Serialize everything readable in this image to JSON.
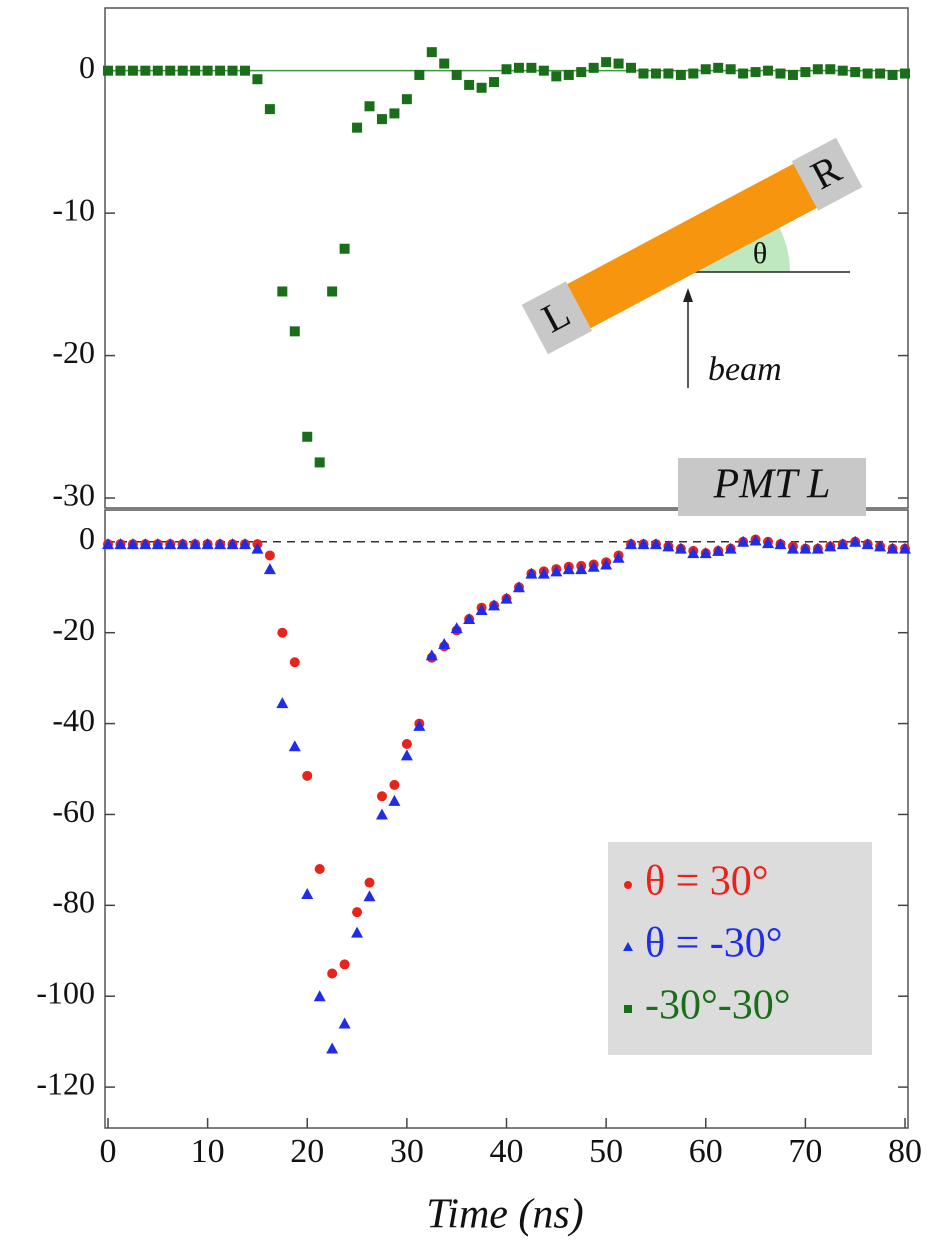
{
  "chart_data": [
    {
      "type": "scatter",
      "title": "PMT L",
      "x": [
        0,
        1.25,
        2.5,
        3.75,
        5,
        6.25,
        7.5,
        8.75,
        10,
        11.25,
        12.5,
        13.75,
        15,
        16.25,
        17.5,
        18.75,
        20,
        21.25,
        22.5,
        23.75,
        25,
        26.25,
        27.5,
        28.75,
        30,
        31.25,
        32.5,
        33.75,
        35,
        36.25,
        37.5,
        38.75,
        40,
        41.25,
        42.5,
        43.75,
        45,
        46.25,
        47.5,
        48.75,
        50,
        51.25,
        52.5,
        53.75,
        55,
        56.25,
        57.5,
        58.75,
        60,
        61.25,
        62.5,
        63.75,
        65,
        66.25,
        67.5,
        68.75,
        70,
        71.25,
        72.5,
        73.75,
        75,
        76.25,
        77.5,
        78.75,
        80
      ],
      "series": [
        {
          "name": "-30°-30°",
          "color": "#1a6e1a",
          "marker": "square",
          "values": [
            0,
            0,
            0,
            0,
            0,
            0,
            0,
            0,
            0,
            0,
            0,
            0,
            -0.6,
            -2.7,
            -15.5,
            -18.3,
            -25.7,
            -27.5,
            -15.5,
            -12.5,
            -4,
            -2.5,
            -3.4,
            -3,
            -2,
            -0.3,
            1.3,
            0.5,
            -0.3,
            -1,
            -1.2,
            -0.8,
            0.1,
            0.2,
            0.2,
            0,
            -0.4,
            -0.3,
            -0.1,
            0.2,
            0.6,
            0.5,
            0.2,
            -0.2,
            -0.2,
            -0.2,
            -0.3,
            -0.2,
            0.1,
            0.2,
            0.1,
            -0.2,
            -0.1,
            0,
            -0.2,
            -0.3,
            -0.1,
            0.1,
            0.1,
            0,
            -0.1,
            -0.2,
            -0.2,
            -0.3,
            -0.2
          ]
        }
      ],
      "xlim": [
        -0.3,
        80.3
      ],
      "ylim": [
        -30.7,
        4.4
      ],
      "yticks": [
        0,
        -10,
        -20,
        -30
      ],
      "hline": 0,
      "inset": {
        "left": "L",
        "right": "R",
        "angle": "θ",
        "beam": "beam"
      }
    },
    {
      "type": "scatter",
      "x_label": "Time (ns)",
      "x": [
        0,
        1.25,
        2.5,
        3.75,
        5,
        6.25,
        7.5,
        8.75,
        10,
        11.25,
        12.5,
        13.75,
        15,
        16.25,
        17.5,
        18.75,
        20,
        21.25,
        22.5,
        23.75,
        25,
        26.25,
        27.5,
        28.75,
        30,
        31.25,
        32.5,
        33.75,
        35,
        36.25,
        37.5,
        38.75,
        40,
        41.25,
        42.5,
        43.75,
        45,
        46.25,
        47.5,
        48.75,
        50,
        51.25,
        52.5,
        53.75,
        55,
        56.25,
        57.5,
        58.75,
        60,
        61.25,
        62.5,
        63.75,
        65,
        66.25,
        67.5,
        68.75,
        70,
        71.25,
        72.5,
        73.75,
        75,
        76.25,
        77.5,
        78.75,
        80
      ],
      "series": [
        {
          "name": "θ = 30°",
          "color": "#e8231c",
          "marker": "circle",
          "values": [
            -0.5,
            -0.5,
            -0.5,
            -0.5,
            -0.5,
            -0.5,
            -0.5,
            -0.5,
            -0.5,
            -0.5,
            -0.5,
            -0.5,
            -0.5,
            -3,
            -20,
            -26.5,
            -51.5,
            -72,
            -95,
            -93,
            -81.5,
            -75,
            -56,
            -53.5,
            -44.5,
            -40,
            -25.5,
            -23,
            -19.5,
            -17,
            -14.5,
            -14,
            -12.5,
            -10,
            -7,
            -6.5,
            -6,
            -5.5,
            -5.3,
            -5,
            -4.5,
            -3,
            -0.5,
            -0.5,
            -0.5,
            -1,
            -1.5,
            -2,
            -2.5,
            -2,
            -1.5,
            0,
            0.5,
            0,
            -0.5,
            -1,
            -1.5,
            -1.5,
            -1,
            -0.5,
            0,
            -0.5,
            -1,
            -1.5,
            -1.5
          ]
        },
        {
          "name": "θ = -30°",
          "color": "#1f2de8",
          "marker": "triangle",
          "values": [
            -0.5,
            -0.5,
            -0.5,
            -0.5,
            -0.5,
            -0.5,
            -0.5,
            -0.5,
            -0.5,
            -0.5,
            -0.5,
            -0.5,
            -1.5,
            -6,
            -35.5,
            -45,
            -77.5,
            -100,
            -111.5,
            -106,
            -86,
            -78,
            -60,
            -57,
            -47,
            -40.5,
            -25,
            -22.5,
            -19,
            -17,
            -15,
            -14,
            -12.5,
            -10,
            -7,
            -7,
            -6.5,
            -6,
            -6,
            -5.5,
            -5,
            -3.5,
            -0.5,
            -0.5,
            -0.5,
            -1,
            -1.5,
            -2.5,
            -2.5,
            -2,
            -1.5,
            0,
            0.3,
            -0.3,
            -0.5,
            -1.5,
            -1.5,
            -1.5,
            -1,
            -0.5,
            0,
            -0.5,
            -1,
            -1.5,
            -1.5
          ]
        }
      ],
      "xlim": [
        -0.3,
        80.3
      ],
      "ylim": [
        -129,
        7
      ],
      "xticks": [
        0,
        10,
        20,
        30,
        40,
        50,
        60,
        70,
        80
      ],
      "yticks": [
        0,
        -20,
        -40,
        -60,
        -80,
        -100,
        -120
      ],
      "hline": 0,
      "legend": "lower right"
    }
  ]
}
